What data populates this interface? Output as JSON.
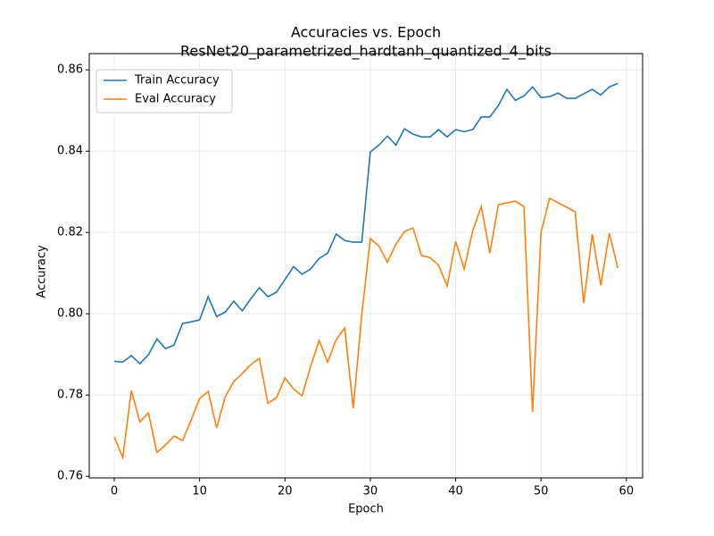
{
  "chart_data": {
    "type": "line",
    "title": "Accuracies vs. Epoch",
    "subtitle": "ResNet20_parametrized_hardtanh_quantized_4_bits",
    "x_label": "Epoch",
    "y_label": "Accuracy",
    "x": [
      0,
      1,
      2,
      3,
      4,
      5,
      6,
      7,
      8,
      9,
      10,
      11,
      12,
      13,
      14,
      15,
      16,
      17,
      18,
      19,
      20,
      21,
      22,
      23,
      24,
      25,
      26,
      27,
      28,
      29,
      30,
      31,
      32,
      33,
      34,
      35,
      36,
      37,
      38,
      39,
      40,
      41,
      42,
      43,
      44,
      45,
      46,
      47,
      48,
      49,
      50,
      51,
      52,
      53,
      54,
      55,
      56,
      57,
      58,
      59
    ],
    "series": [
      {
        "name": "Train Accuracy",
        "color": "#1f77b4",
        "values": [
          0.7883,
          0.7881,
          0.7897,
          0.7877,
          0.7899,
          0.7938,
          0.7914,
          0.7923,
          0.7976,
          0.798,
          0.7985,
          0.8042,
          0.7993,
          0.8004,
          0.8031,
          0.8007,
          0.8037,
          0.8064,
          0.8042,
          0.8053,
          0.8084,
          0.8116,
          0.8097,
          0.811,
          0.8136,
          0.8149,
          0.8196,
          0.818,
          0.8176,
          0.8176,
          0.8398,
          0.8415,
          0.8437,
          0.8415,
          0.8455,
          0.8442,
          0.8435,
          0.8435,
          0.8453,
          0.8435,
          0.8453,
          0.8448,
          0.8453,
          0.8484,
          0.8484,
          0.8512,
          0.8552,
          0.8525,
          0.8536,
          0.8558,
          0.8532,
          0.8534,
          0.8543,
          0.853,
          0.853,
          0.8541,
          0.8552,
          0.8538,
          0.8558,
          0.8567
        ]
      },
      {
        "name": "Eval Accuracy",
        "color": "#ff7f0e",
        "values": [
          0.7697,
          0.7646,
          0.7811,
          0.7734,
          0.7756,
          0.7659,
          0.7677,
          0.7699,
          0.7688,
          0.7738,
          0.7791,
          0.7809,
          0.7719,
          0.7796,
          0.7833,
          0.7853,
          0.7875,
          0.789,
          0.778,
          0.7793,
          0.7842,
          0.7815,
          0.7798,
          0.787,
          0.7934,
          0.7881,
          0.7936,
          0.7965,
          0.7767,
          0.7998,
          0.8185,
          0.8167,
          0.8127,
          0.8171,
          0.8202,
          0.8211,
          0.8143,
          0.8138,
          0.8119,
          0.8068,
          0.8178,
          0.811,
          0.8204,
          0.8264,
          0.8149,
          0.8268,
          0.8273,
          0.8277,
          0.8264,
          0.7758,
          0.82,
          0.8284,
          0.8273,
          0.8262,
          0.8251,
          0.8026,
          0.8196,
          0.807,
          0.8198,
          0.8112
        ]
      }
    ],
    "xlim": [
      -2.93,
      61.9
    ],
    "ylim": [
      0.7596,
      0.864
    ],
    "xticks": [
      0,
      10,
      20,
      30,
      40,
      50,
      60
    ],
    "yticks": [
      0.76,
      0.78,
      {
        "value": 0.8,
        "label": "0.80"
      },
      0.82,
      0.84,
      0.86
    ],
    "grid": true,
    "legend": "upper-left"
  }
}
